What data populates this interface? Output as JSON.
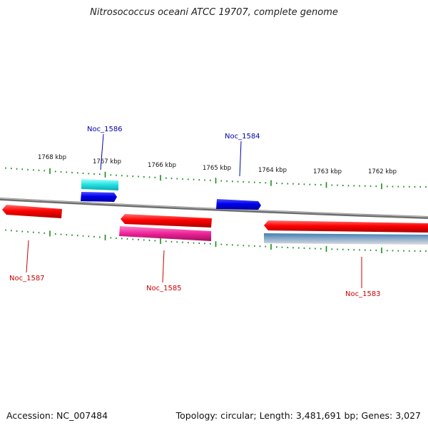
{
  "title": "Nitrosococcus oceani ATCC 19707, complete genome",
  "footer": {
    "accession": "Accession: NC_007484",
    "topology": "Topology: circular; Length: 3,481,691 bp; Genes: 3,027"
  },
  "scale": {
    "labels": [
      "1768 kbp",
      "1767 kbp",
      "1766 kbp",
      "1765 kbp",
      "1764 kbp",
      "1763 kbp",
      "1762 kbp"
    ]
  },
  "genes": [
    {
      "name": "Noc_1586",
      "color": "#0000aa"
    },
    {
      "name": "Noc_1584",
      "color": "#0000aa"
    },
    {
      "name": "Noc_1587",
      "color": "#cc0000"
    },
    {
      "name": "Noc_1585",
      "color": "#cc0000"
    },
    {
      "name": "Noc_1583",
      "color": "#cc0000"
    }
  ],
  "colors": {
    "forward_gene": "#0000ee",
    "reverse_gene": "#ee0000",
    "rna_gene": "#33dddd",
    "misc_feature": "#ee2299",
    "backbone": "#888888",
    "ticks": "#1a8a1a",
    "region": "#5588aa"
  }
}
